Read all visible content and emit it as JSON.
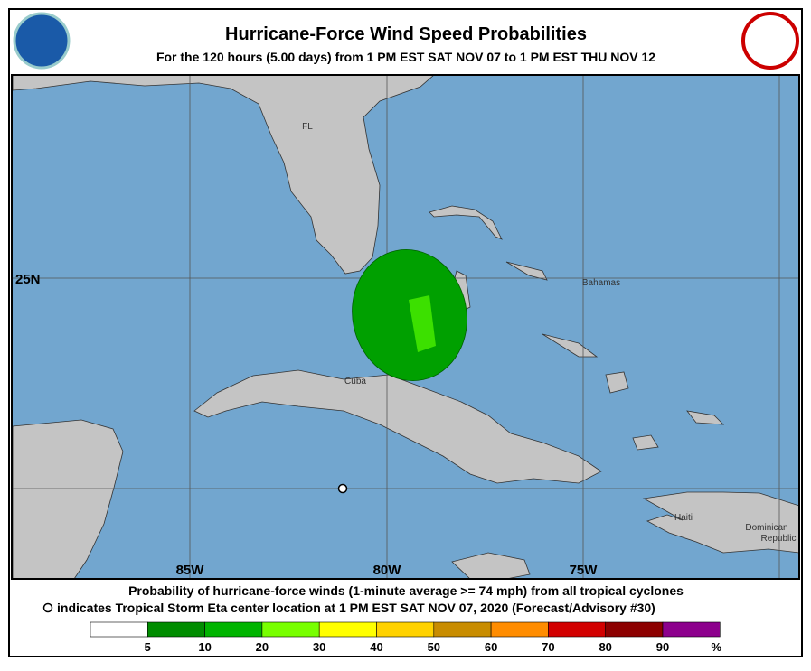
{
  "header": {
    "title": "Hurricane-Force Wind Speed Probabilities",
    "subtitle": "For the 120 hours (5.00 days) from 1 PM EST SAT NOV 07 to 1 PM EST THU NOV 12"
  },
  "map": {
    "labels": [
      "FL",
      "Bahamas",
      "Cuba",
      "Haiti",
      "Dominican",
      "Republic"
    ],
    "latitudes": [
      "25N"
    ],
    "longitudes": [
      "85W",
      "80W",
      "75W"
    ]
  },
  "footer": {
    "line1": "Probability of hurricane-force winds (1-minute average >= 74 mph) from all tropical cyclones",
    "line2": "indicates Tropical Storm Eta center location at 1 PM EST SAT NOV 07, 2020 (Forecast/Advisory #30)"
  },
  "legend": {
    "colors": [
      "#ffffff",
      "#008c00",
      "#00b400",
      "#78ff00",
      "#ffff00",
      "#ffd200",
      "#c88c00",
      "#ff8c00",
      "#d20000",
      "#8c0000",
      "#8c008c"
    ],
    "labels": [
      "5",
      "10",
      "20",
      "30",
      "40",
      "50",
      "60",
      "70",
      "80",
      "90",
      "%"
    ]
  }
}
